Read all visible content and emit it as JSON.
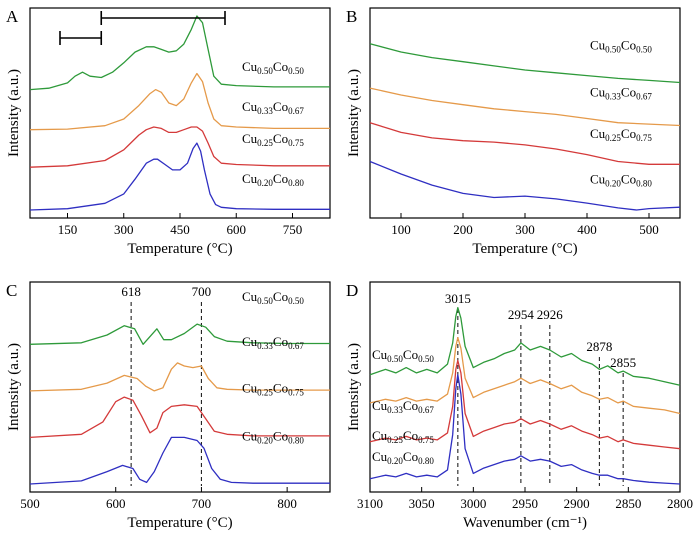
{
  "figure": {
    "background": "#ffffff"
  },
  "colors": {
    "green": "#2e9a3a",
    "orange": "#e59a4a",
    "red": "#d43a3a",
    "blue": "#2f2fc2"
  },
  "chart_data": [
    {
      "panel_label": "A",
      "type": "line",
      "xlabel": "Temperature (°C)",
      "ylabel": "Intensity (a.u.)",
      "xlim": [
        50,
        850
      ],
      "xticks": [
        150,
        300,
        450,
        600,
        750
      ],
      "grid": false,
      "series": [
        {
          "name_main": "Cu",
          "name_sub1": "0.50",
          "name_mid": "Co",
          "name_sub2": "0.50",
          "color": "#2e9a3a",
          "offset": 9.0,
          "x": [
            50,
            100,
            150,
            170,
            190,
            210,
            240,
            270,
            300,
            330,
            360,
            380,
            400,
            420,
            440,
            460,
            480,
            495,
            510,
            525,
            540,
            560,
            600,
            700,
            850
          ],
          "y": [
            0.0,
            0.1,
            0.5,
            1.0,
            1.3,
            1.0,
            0.9,
            1.3,
            2.0,
            2.8,
            3.2,
            3.2,
            3.0,
            2.8,
            2.9,
            3.4,
            4.5,
            5.5,
            5.0,
            3.0,
            1.0,
            0.4,
            0.3,
            0.2,
            0.2
          ]
        },
        {
          "name_main": "Cu",
          "name_sub1": "0.33",
          "name_mid": "Co",
          "name_sub2": "0.67",
          "color": "#e59a4a",
          "offset": 6.0,
          "x": [
            50,
            150,
            250,
            300,
            340,
            370,
            385,
            400,
            420,
            440,
            460,
            480,
            495,
            510,
            525,
            540,
            560,
            600,
            700,
            850
          ],
          "y": [
            0.0,
            0.05,
            0.3,
            0.8,
            1.8,
            2.7,
            3.0,
            2.8,
            2.0,
            1.8,
            2.3,
            3.5,
            4.2,
            3.6,
            2.0,
            0.8,
            0.3,
            0.2,
            0.1,
            0.1
          ]
        },
        {
          "name_main": "Cu",
          "name_sub1": "0.25",
          "name_mid": "Co",
          "name_sub2": "0.75",
          "color": "#d43a3a",
          "offset": 3.2,
          "x": [
            50,
            150,
            250,
            300,
            340,
            360,
            380,
            400,
            420,
            440,
            460,
            480,
            495,
            510,
            525,
            540,
            560,
            600,
            700,
            850
          ],
          "y": [
            0.0,
            0.1,
            0.5,
            1.3,
            2.4,
            2.8,
            3.0,
            2.9,
            2.6,
            2.6,
            2.8,
            3.0,
            3.0,
            2.7,
            1.8,
            0.8,
            0.3,
            0.2,
            0.1,
            0.1
          ]
        },
        {
          "name_main": "Cu",
          "name_sub1": "0.20",
          "name_mid": "Co",
          "name_sub2": "0.80",
          "color": "#2f2fc2",
          "offset": 0.0,
          "x": [
            50,
            150,
            250,
            300,
            330,
            360,
            380,
            390,
            410,
            430,
            450,
            470,
            485,
            495,
            505,
            515,
            530,
            545,
            560,
            600,
            700,
            850
          ],
          "y": [
            0.0,
            0.1,
            0.5,
            1.2,
            2.3,
            3.5,
            3.8,
            3.8,
            3.4,
            3.0,
            3.0,
            3.5,
            4.6,
            5.0,
            4.4,
            3.0,
            1.2,
            0.4,
            0.2,
            0.1,
            0.05,
            0.05
          ]
        }
      ]
    },
    {
      "panel_label": "B",
      "type": "line",
      "xlabel": "Temperature (°C)",
      "ylabel": "Intensity (a.u.)",
      "xlim": [
        50,
        550
      ],
      "xticks": [
        100,
        200,
        300,
        400,
        500
      ],
      "grid": false,
      "series": [
        {
          "name_main": "Cu",
          "name_sub1": "0.50",
          "name_mid": "Co",
          "name_sub2": "0.50",
          "color": "#2e9a3a",
          "offset": 9.0,
          "x": [
            50,
            100,
            150,
            200,
            250,
            300,
            350,
            400,
            450,
            500,
            550
          ],
          "y": [
            3.0,
            2.4,
            2.0,
            1.7,
            1.4,
            1.1,
            0.9,
            0.7,
            0.5,
            0.35,
            0.2
          ]
        },
        {
          "name_main": "Cu",
          "name_sub1": "0.33",
          "name_mid": "Co",
          "name_sub2": "0.67",
          "color": "#e59a4a",
          "offset": 6.0,
          "x": [
            50,
            100,
            150,
            200,
            250,
            300,
            350,
            400,
            450,
            500,
            550
          ],
          "y": [
            2.8,
            2.3,
            1.9,
            1.6,
            1.3,
            1.1,
            0.9,
            0.6,
            0.3,
            0.2,
            0.1
          ]
        },
        {
          "name_main": "Cu",
          "name_sub1": "0.25",
          "name_mid": "Co",
          "name_sub2": "0.75",
          "color": "#d43a3a",
          "offset": 3.0,
          "x": [
            50,
            100,
            150,
            200,
            250,
            300,
            350,
            400,
            450,
            500,
            550
          ],
          "y": [
            3.3,
            2.6,
            2.2,
            2.0,
            1.9,
            1.7,
            1.4,
            1.0,
            0.5,
            0.3,
            0.3
          ]
        },
        {
          "name_main": "Cu",
          "name_sub1": "0.20",
          "name_mid": "Co",
          "name_sub2": "0.80",
          "color": "#2f2fc2",
          "offset": 0.0,
          "x": [
            50,
            100,
            150,
            200,
            250,
            300,
            350,
            400,
            450,
            480,
            500,
            550
          ],
          "y": [
            3.5,
            2.6,
            1.8,
            1.2,
            0.9,
            1.0,
            0.8,
            0.5,
            0.15,
            0.0,
            0.1,
            0.2
          ]
        }
      ]
    },
    {
      "panel_label": "C",
      "type": "line",
      "xlabel": "Temperature (°C)",
      "ylabel": "Intensity (a.u.)",
      "xlim": [
        500,
        850
      ],
      "xticks": [
        500,
        600,
        700,
        800
      ],
      "grid": false,
      "annotations": [
        {
          "x": 618,
          "label": "618"
        },
        {
          "x": 700,
          "label": "700"
        }
      ],
      "series": [
        {
          "name_main": "Cu",
          "name_sub1": "0.50",
          "name_mid": "Co",
          "name_sub2": "0.50",
          "color": "#2e9a3a",
          "offset": 9.0,
          "x": [
            500,
            560,
            590,
            610,
            622,
            632,
            640,
            648,
            656,
            665,
            680,
            695,
            705,
            715,
            730,
            760,
            800,
            850
          ],
          "y": [
            0.0,
            0.1,
            0.6,
            1.2,
            1.0,
            0.0,
            0.5,
            1.0,
            0.3,
            0.3,
            0.7,
            1.3,
            1.1,
            0.5,
            0.2,
            0.1,
            0.05,
            0.05
          ]
        },
        {
          "name_main": "Cu",
          "name_sub1": "0.33",
          "name_mid": "Co",
          "name_sub2": "0.67",
          "color": "#e59a4a",
          "offset": 6.0,
          "x": [
            500,
            560,
            590,
            610,
            625,
            635,
            645,
            655,
            665,
            672,
            680,
            690,
            700,
            708,
            718,
            730,
            760,
            800,
            850
          ],
          "y": [
            0.0,
            0.1,
            0.5,
            1.0,
            0.8,
            0.3,
            0.0,
            0.2,
            1.4,
            1.8,
            1.6,
            1.5,
            1.6,
            0.8,
            0.2,
            0.1,
            0.05,
            0.05,
            0.05
          ]
        },
        {
          "name_main": "Cu",
          "name_sub1": "0.25",
          "name_mid": "Co",
          "name_sub2": "0.75",
          "color": "#d43a3a",
          "offset": 3.0,
          "x": [
            500,
            560,
            585,
            600,
            610,
            620,
            630,
            640,
            648,
            655,
            665,
            680,
            695,
            705,
            715,
            730,
            760,
            800,
            850
          ],
          "y": [
            0.0,
            0.2,
            1.0,
            2.3,
            2.6,
            2.4,
            1.4,
            0.3,
            0.6,
            1.6,
            2.0,
            2.1,
            2.0,
            1.2,
            0.4,
            0.2,
            0.1,
            0.1,
            0.1
          ]
        },
        {
          "name_main": "Cu",
          "name_sub1": "0.20",
          "name_mid": "Co",
          "name_sub2": "0.80",
          "color": "#2f2fc2",
          "offset": 0.0,
          "x": [
            500,
            560,
            590,
            608,
            620,
            628,
            636,
            645,
            655,
            665,
            680,
            695,
            703,
            712,
            722,
            735,
            760,
            800,
            850
          ],
          "y": [
            0.0,
            0.2,
            0.8,
            1.2,
            1.0,
            0.3,
            0.1,
            0.8,
            2.0,
            3.0,
            3.0,
            2.8,
            2.3,
            1.0,
            0.3,
            0.1,
            0.05,
            0.05,
            0.05
          ]
        }
      ]
    },
    {
      "panel_label": "D",
      "type": "line",
      "xlabel": "Wavenumber (cm⁻¹)",
      "ylabel": "Intensity (a.u.)",
      "xlim": [
        3100,
        2800
      ],
      "xticks": [
        3100,
        3050,
        3000,
        2950,
        2900,
        2850,
        2800
      ],
      "grid": false,
      "annotations": [
        {
          "x": 3015,
          "label": "3015"
        },
        {
          "x": 2954,
          "label": "2954"
        },
        {
          "x": 2926,
          "label": "2926"
        },
        {
          "x": 2878,
          "label": "2878"
        },
        {
          "x": 2855,
          "label": "2855"
        }
      ],
      "series": [
        {
          "name_main": "Cu",
          "name_sub1": "0.50",
          "name_mid": "Co",
          "name_sub2": "0.50",
          "color": "#2e9a3a",
          "offset": 3.0,
          "x": [
            3100,
            3085,
            3075,
            3065,
            3055,
            3045,
            3035,
            3025,
            3020,
            3017,
            3015,
            3012,
            3008,
            3000,
            2990,
            2980,
            2970,
            2960,
            2954,
            2945,
            2935,
            2926,
            2915,
            2905,
            2895,
            2885,
            2878,
            2870,
            2860,
            2855,
            2845,
            2830,
            2815,
            2800
          ],
          "y": [
            3.2,
            3.5,
            3.3,
            3.6,
            3.3,
            3.5,
            3.3,
            3.8,
            5.0,
            6.5,
            7.0,
            6.4,
            4.8,
            3.6,
            3.9,
            4.1,
            4.4,
            4.6,
            5.0,
            4.6,
            4.8,
            4.6,
            4.2,
            4.4,
            4.0,
            3.8,
            3.5,
            3.7,
            3.3,
            3.4,
            3.1,
            3.0,
            2.8,
            2.6
          ]
        },
        {
          "name_main": "Cu",
          "name_sub1": "0.33",
          "name_mid": "Co",
          "name_sub2": "0.67",
          "color": "#e59a4a",
          "offset": 2.0,
          "x": [
            3100,
            3085,
            3075,
            3065,
            3055,
            3045,
            3035,
            3025,
            3020,
            3017,
            3015,
            3012,
            3008,
            3000,
            2990,
            2980,
            2970,
            2960,
            2954,
            2945,
            2935,
            2926,
            2915,
            2905,
            2895,
            2885,
            2878,
            2870,
            2860,
            2855,
            2845,
            2830,
            2815,
            2800
          ],
          "y": [
            2.6,
            2.8,
            2.7,
            2.9,
            2.7,
            2.8,
            2.7,
            3.1,
            4.3,
            5.8,
            6.3,
            5.7,
            4.0,
            2.9,
            3.2,
            3.4,
            3.6,
            3.8,
            4.0,
            3.7,
            3.9,
            3.7,
            3.4,
            3.6,
            3.2,
            3.0,
            2.8,
            2.9,
            2.6,
            2.7,
            2.4,
            2.3,
            2.2,
            2.0
          ]
        },
        {
          "name_main": "Cu",
          "name_sub1": "0.25",
          "name_mid": "Co",
          "name_sub2": "0.75",
          "color": "#d43a3a",
          "offset": 1.0,
          "x": [
            3100,
            3085,
            3075,
            3065,
            3055,
            3045,
            3035,
            3025,
            3020,
            3017,
            3015,
            3012,
            3008,
            3000,
            2990,
            2980,
            2970,
            2960,
            2954,
            2945,
            2935,
            2926,
            2915,
            2905,
            2895,
            2885,
            2878,
            2870,
            2860,
            2855,
            2845,
            2830,
            2815,
            2800
          ],
          "y": [
            1.4,
            1.6,
            1.5,
            1.7,
            1.5,
            1.6,
            1.5,
            1.9,
            3.4,
            5.5,
            6.0,
            5.3,
            3.0,
            1.7,
            2.0,
            2.2,
            2.4,
            2.5,
            2.7,
            2.4,
            2.6,
            2.4,
            2.1,
            2.3,
            2.0,
            1.8,
            1.6,
            1.7,
            1.4,
            1.5,
            1.3,
            1.2,
            1.1,
            1.0
          ]
        },
        {
          "name_main": "Cu",
          "name_sub1": "0.20",
          "name_mid": "Co",
          "name_sub2": "0.80",
          "color": "#2f2fc2",
          "offset": 0.0,
          "x": [
            3100,
            3085,
            3075,
            3065,
            3055,
            3045,
            3035,
            3025,
            3020,
            3017,
            3015,
            3012,
            3008,
            3000,
            2990,
            2980,
            2970,
            2960,
            2954,
            2945,
            2935,
            2926,
            2915,
            2905,
            2895,
            2885,
            2878,
            2870,
            2860,
            2855,
            2845,
            2830,
            2815,
            2800
          ],
          "y": [
            0.3,
            0.5,
            0.4,
            0.6,
            0.4,
            0.5,
            0.4,
            0.8,
            2.8,
            5.4,
            6.2,
            5.1,
            2.0,
            0.6,
            0.9,
            1.1,
            1.3,
            1.4,
            1.6,
            1.3,
            1.4,
            1.3,
            1.0,
            1.1,
            0.8,
            0.6,
            0.5,
            0.5,
            0.3,
            0.3,
            0.2,
            0.1,
            0.05,
            0.0
          ]
        }
      ]
    }
  ]
}
